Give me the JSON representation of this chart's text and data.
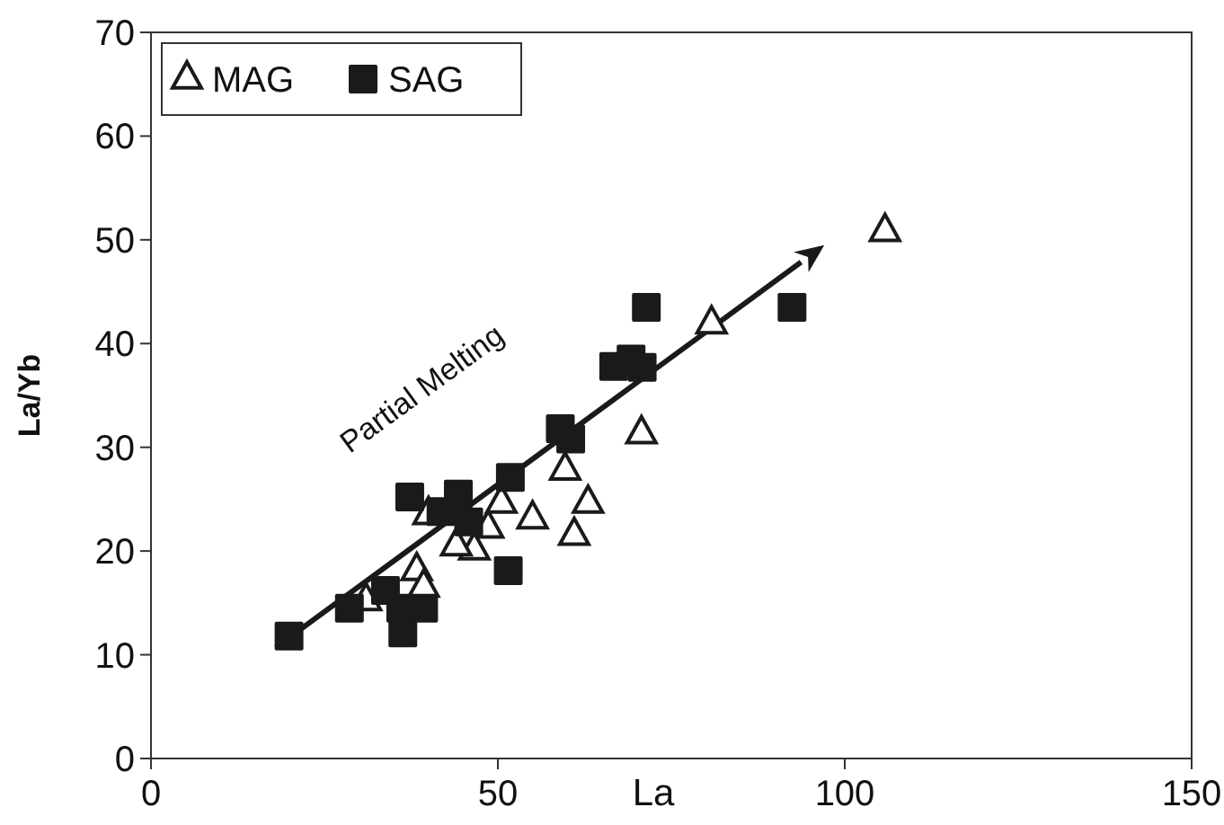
{
  "chart_data": {
    "type": "scatter",
    "xlabel": "La",
    "ylabel": "La/Yb",
    "xlim": [
      0,
      150
    ],
    "xticks": [
      0,
      50,
      100,
      150
    ],
    "ylim": [
      0,
      70
    ],
    "yticks": [
      0,
      10,
      20,
      30,
      40,
      50,
      60,
      70
    ],
    "grid": false,
    "legend": "top left",
    "annotations": [
      "Partial Melting"
    ],
    "series": [
      {
        "name": "MAG",
        "color": "#1a1a1a",
        "marker": "triangle",
        "x": [
          105.8,
          80.8,
          70.7,
          59.7,
          63,
          61,
          55,
          50.5,
          48.6,
          46.6,
          44,
          40,
          38.3,
          39.3,
          31
        ],
        "values": [
          50.8,
          41.9,
          31.3,
          27.8,
          24.6,
          21.5,
          23.1,
          24.6,
          22.2,
          20.1,
          20.5,
          23.5,
          18.1,
          16.5,
          15.2
        ]
      },
      {
        "name": "SAG",
        "color": "#1a1a1a",
        "marker": "square",
        "x": [
          19.9,
          28.6,
          36.3,
          39.3,
          33.8,
          36,
          37.3,
          44.3,
          41.8,
          45.8,
          51.8,
          51.5,
          59,
          60.5,
          66.7,
          69.2,
          70.8,
          71.4,
          92.4
        ],
        "values": [
          11.8,
          14.5,
          12.1,
          14.5,
          16.2,
          14.5,
          25.2,
          25.5,
          23.8,
          22.8,
          27.1,
          18.1,
          31.8,
          30.8,
          37.8,
          38.5,
          37.7,
          43.5,
          43.5
        ]
      }
    ]
  }
}
